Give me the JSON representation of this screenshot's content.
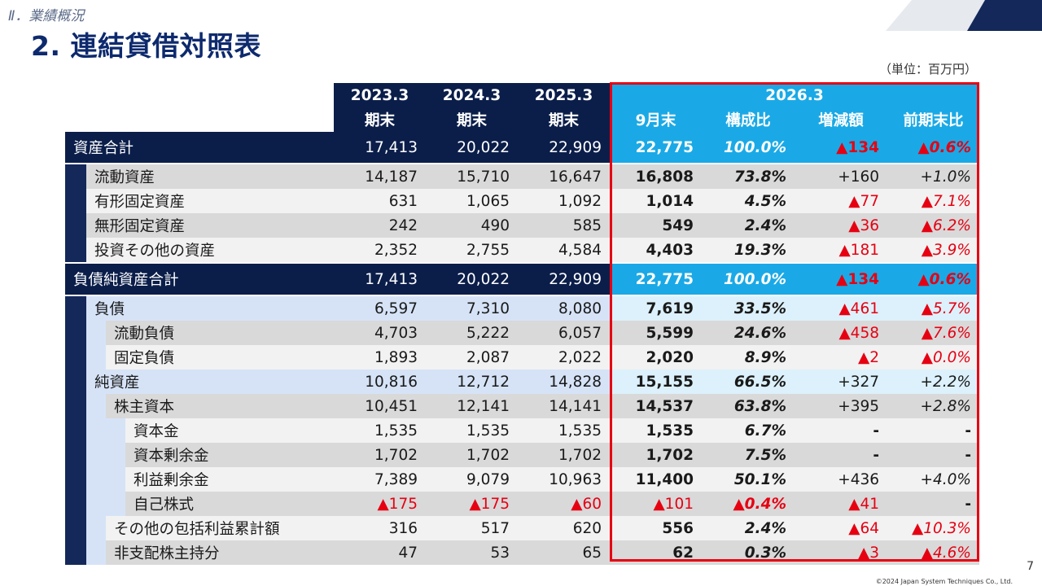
{
  "header": {
    "section": "Ⅱ．業績概況",
    "title": "2. 連結貸借対照表",
    "unit": "（単位：百万円）"
  },
  "columns": {
    "years": [
      "2023.3",
      "2024.3",
      "2025.3"
    ],
    "year_sub": [
      "期末",
      "期末",
      "期末"
    ],
    "current_year": "2026.3",
    "current_sub": [
      "9月末",
      "構成比",
      "増減額",
      "前期末比"
    ]
  },
  "rows": [
    {
      "label": "資産合計",
      "values": [
        "17,413",
        "20,022",
        "22,909"
      ],
      "current": "22,775",
      "ratio": "100.0%",
      "change": "▲134",
      "pct": "▲0.6%"
    },
    {
      "label": "流動資産",
      "values": [
        "14,187",
        "15,710",
        "16,647"
      ],
      "current": "16,808",
      "ratio": "73.8%",
      "change": "+160",
      "pct": "+1.0%"
    },
    {
      "label": "有形固定資産",
      "values": [
        "631",
        "1,065",
        "1,092"
      ],
      "current": "1,014",
      "ratio": "4.5%",
      "change": "▲77",
      "pct": "▲7.1%"
    },
    {
      "label": "無形固定資産",
      "values": [
        "242",
        "490",
        "585"
      ],
      "current": "549",
      "ratio": "2.4%",
      "change": "▲36",
      "pct": "▲6.2%"
    },
    {
      "label": "投資その他の資産",
      "values": [
        "2,352",
        "2,755",
        "4,584"
      ],
      "current": "4,403",
      "ratio": "19.3%",
      "change": "▲181",
      "pct": "▲3.9%"
    },
    {
      "label": "負債純資産合計",
      "values": [
        "17,413",
        "20,022",
        "22,909"
      ],
      "current": "22,775",
      "ratio": "100.0%",
      "change": "▲134",
      "pct": "▲0.6%"
    },
    {
      "label": "負債",
      "values": [
        "6,597",
        "7,310",
        "8,080"
      ],
      "current": "7,619",
      "ratio": "33.5%",
      "change": "▲461",
      "pct": "▲5.7%"
    },
    {
      "label": "流動負債",
      "values": [
        "4,703",
        "5,222",
        "6,057"
      ],
      "current": "5,599",
      "ratio": "24.6%",
      "change": "▲458",
      "pct": "▲7.6%"
    },
    {
      "label": "固定負債",
      "values": [
        "1,893",
        "2,087",
        "2,022"
      ],
      "current": "2,020",
      "ratio": "8.9%",
      "change": "▲2",
      "pct": "▲0.0%"
    },
    {
      "label": "純資産",
      "values": [
        "10,816",
        "12,712",
        "14,828"
      ],
      "current": "15,155",
      "ratio": "66.5%",
      "change": "+327",
      "pct": "+2.2%"
    },
    {
      "label": "株主資本",
      "values": [
        "10,451",
        "12,141",
        "14,141"
      ],
      "current": "14,537",
      "ratio": "63.8%",
      "change": "+395",
      "pct": "+2.8%"
    },
    {
      "label": "資本金",
      "values": [
        "1,535",
        "1,535",
        "1,535"
      ],
      "current": "1,535",
      "ratio": "6.7%",
      "change": "-",
      "pct": "-"
    },
    {
      "label": "資本剰余金",
      "values": [
        "1,702",
        "1,702",
        "1,702"
      ],
      "current": "1,702",
      "ratio": "7.5%",
      "change": "-",
      "pct": "-"
    },
    {
      "label": "利益剰余金",
      "values": [
        "7,389",
        "9,079",
        "10,963"
      ],
      "current": "11,400",
      "ratio": "50.1%",
      "change": "+436",
      "pct": "+4.0%"
    },
    {
      "label": "自己株式",
      "values": [
        "▲175",
        "▲175",
        "▲60"
      ],
      "current": "▲101",
      "ratio": "▲0.4%",
      "change": "▲41",
      "pct": "-"
    },
    {
      "label": "その他の包括利益累計額",
      "values": [
        "316",
        "517",
        "620"
      ],
      "current": "556",
      "ratio": "2.4%",
      "change": "▲64",
      "pct": "▲10.3%"
    },
    {
      "label": "非支配株主持分",
      "values": [
        "47",
        "53",
        "65"
      ],
      "current": "62",
      "ratio": "0.3%",
      "change": "▲3",
      "pct": "▲4.6%"
    }
  ],
  "footer": {
    "copyright": "©2024 Japan System Techniques Co., Ltd.",
    "page": "7"
  },
  "colors": {
    "navy": "#0b1e4a",
    "accent_blue": "#1aa9e6",
    "negative_red": "#e60012",
    "highlight_frame": "#e60012"
  }
}
